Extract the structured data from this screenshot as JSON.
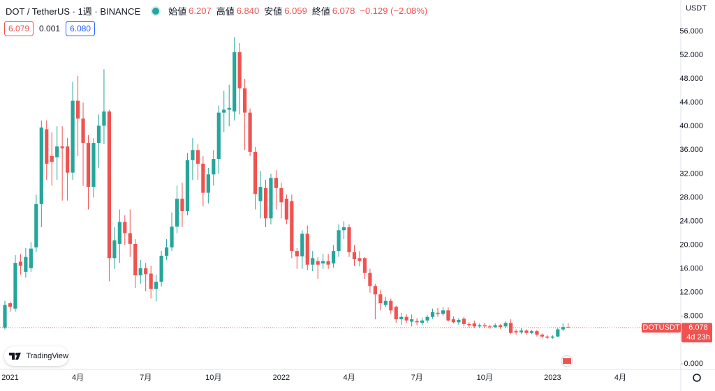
{
  "header": {
    "symbol": "DOT / TetherUS · 1週 · BINANCE",
    "open_label": "始値",
    "open": "6.207",
    "high_label": "高値",
    "high": "6.840",
    "low_label": "安値",
    "low": "6.059",
    "close_label": "終値",
    "close": "6.078",
    "change": "−0.129 (−2.08%)",
    "bid": "6.079",
    "spread": "0.001",
    "ask": "6.080"
  },
  "currency": "USDT",
  "price_tag": {
    "symbol": "DOTUSDT",
    "countdown": "4d 23h"
  },
  "logo": "TradingView",
  "chart_data": {
    "type": "candlestick",
    "categories": [
      null,
      "2021",
      null,
      null,
      null,
      null,
      null,
      null,
      null,
      null,
      null,
      null,
      null,
      null,
      "4月",
      null,
      null,
      null,
      null,
      null,
      null,
      null,
      null,
      null,
      null,
      null,
      null,
      "7月",
      null,
      null,
      null,
      null,
      null,
      null,
      null,
      null,
      null,
      null,
      null,
      null,
      "10月",
      null,
      null,
      null,
      null,
      null,
      null,
      null,
      null,
      null,
      null,
      null,
      null,
      "2022",
      null,
      null,
      null,
      null,
      null,
      null,
      null,
      null,
      null,
      null,
      null,
      null,
      "4月",
      null,
      null,
      null,
      null,
      null,
      null,
      null,
      null,
      null,
      null,
      null,
      null,
      "7月",
      null,
      null,
      null,
      null,
      null,
      null,
      null,
      null,
      null,
      null,
      null,
      null,
      "10月",
      null,
      null,
      null,
      null,
      null,
      null,
      null,
      null,
      null,
      null,
      null,
      null,
      "2023",
      null,
      null,
      null,
      null,
      null,
      null,
      null,
      null,
      null,
      null,
      null,
      null,
      "4月"
    ],
    "open": [
      6.1,
      10.2,
      9.3,
      17.2,
      15.5,
      16.1,
      19.6,
      26.9,
      39.5,
      35,
      34.8,
      36.6,
      36.6,
      32.2,
      44.3,
      41.3,
      37.2,
      29.8,
      37.2,
      40.1,
      42.5,
      17.8,
      20.2,
      23.9,
      22,
      20.2,
      14.9,
      16.1,
      15.2,
      12.6,
      13.8,
      18.2,
      19.6,
      23.1,
      27.8,
      25.7,
      34.3,
      36,
      33.7,
      28.8,
      31.9,
      34.5,
      42.3,
      42.8,
      42.5,
      52.5,
      46.4,
      42.3,
      35.7,
      27.4,
      29.6,
      24.5,
      31.3,
      29.6,
      27.8,
      27.4,
      19,
      18.1,
      21.9,
      16.7,
      17.3,
      16.9,
      17.3,
      16.9,
      19,
      22.5,
      23,
      18.8,
      17.8,
      17.8,
      15.3,
      13.1,
      11.7,
      9.9,
      10.6,
      9.6,
      7.5,
      7.9,
      7.1,
      7.2,
      6.9,
      7.3,
      7.9,
      8.6,
      8.4,
      9,
      7.5,
      7.0,
      7.6,
      6.7,
      6.8,
      6.3,
      6.5,
      6.3,
      6.2,
      6.5,
      6.3,
      6.9,
      5.5,
      5.3,
      5.6,
      5.2,
      5.5,
      4.9,
      4.6,
      4.4,
      4.6,
      5.8,
      6.207,
      null,
      null,
      null,
      null,
      null,
      null,
      null,
      null,
      null,
      null
    ],
    "high": [
      10.6,
      10.5,
      18.3,
      18.5,
      19.5,
      20.5,
      28.5,
      41,
      41,
      39,
      40,
      40,
      38,
      47.5,
      48.5,
      44,
      38.5,
      38,
      42,
      49.6,
      42.8,
      23,
      26,
      25,
      26,
      21,
      17.5,
      17,
      16.5,
      15,
      19,
      21,
      25.5,
      30,
      30.5,
      35.5,
      38,
      37,
      35,
      33,
      36,
      43.5,
      46,
      47,
      55,
      54,
      48,
      43,
      36.5,
      32.5,
      31,
      32,
      32.6,
      30.5,
      28.5,
      28.5,
      19.5,
      22.5,
      23.3,
      19,
      18,
      18.5,
      18.5,
      20,
      23.5,
      24,
      23.5,
      20,
      19,
      18,
      16,
      13.5,
      12.5,
      11.3,
      11,
      9.8,
      8.6,
      8.3,
      8.3,
      7.7,
      7.8,
      8.2,
      9.3,
      9.4,
      9.6,
      9.5,
      8,
      7.7,
      7.9,
      7,
      7.3,
      6.8,
      6.9,
      6.6,
      6.8,
      6.7,
      7.2,
      7.5,
      5.8,
      6,
      5.8,
      5.7,
      5.7,
      5.1,
      4.8,
      4.8,
      6.1,
      6.8,
      6.84,
      null,
      null,
      null,
      null,
      null,
      null,
      null,
      null,
      null,
      null
    ],
    "low": [
      5.8,
      8.8,
      8.8,
      15,
      14.5,
      15.5,
      18.8,
      23,
      31,
      30,
      31,
      27.5,
      27.5,
      31,
      35,
      30,
      26,
      28,
      33,
      37,
      13.9,
      16,
      17,
      20,
      18,
      12.8,
      13.5,
      12.2,
      11,
      10.5,
      13,
      17.5,
      19,
      22,
      23,
      25,
      31,
      31,
      26.5,
      27,
      30,
      32,
      39,
      40,
      41,
      42,
      36,
      35,
      26,
      24.5,
      23,
      23.5,
      26,
      24.5,
      23.5,
      17.8,
      16,
      16,
      15.8,
      15.6,
      14.3,
      16,
      16,
      16.2,
      18,
      21,
      18,
      16.5,
      16.4,
      14.3,
      12,
      7.5,
      9,
      9.6,
      8.4,
      6.9,
      6.6,
      6.9,
      6.3,
      6.5,
      6.5,
      6.9,
      7.6,
      7.9,
      8.1,
      7.1,
      6.8,
      6.6,
      6.3,
      6.1,
      6,
      6,
      6.1,
      5.9,
      6,
      5.9,
      6,
      5,
      4.9,
      5,
      4.9,
      5,
      4.6,
      4.3,
      4.2,
      4.2,
      4.5,
      5.5,
      6.059,
      null,
      null,
      null,
      null,
      null,
      null,
      null,
      null,
      null,
      null
    ],
    "close": [
      9.9,
      9.6,
      17.0,
      16.5,
      18.0,
      19.4,
      26.9,
      39.8,
      33.7,
      34.0,
      36.6,
      36.3,
      32.2,
      44.3,
      41.3,
      37.2,
      29.8,
      37.2,
      40.1,
      42.5,
      17.8,
      20.8,
      23.9,
      22,
      20.2,
      14.9,
      16.1,
      15.1,
      12.6,
      13.8,
      18.2,
      19.6,
      23.1,
      27.8,
      25.7,
      34.3,
      36,
      33.7,
      28.8,
      31.9,
      34.5,
      42.3,
      42.8,
      43.1,
      52.5,
      46.4,
      42.3,
      35.7,
      28.6,
      29.8,
      24.5,
      31.3,
      29.6,
      27.2,
      24.3,
      19,
      18.1,
      21.9,
      16.7,
      17.8,
      16.7,
      17.3,
      16.7,
      19,
      22.5,
      23,
      18.8,
      17.6,
      17.3,
      15.3,
      13.1,
      11.7,
      10.2,
      10.6,
      9,
      7.5,
      7.9,
      7.3,
      7.5,
      7.0,
      7.3,
      7.9,
      8.7,
      8.4,
      9,
      7.3,
      7.0,
      7.4,
      6.7,
      6.5,
      6.3,
      6.5,
      6.3,
      6.2,
      6.5,
      6.2,
      6.9,
      5.2,
      5.3,
      5.6,
      5.2,
      5.5,
      4.9,
      4.6,
      4.4,
      4.6,
      5.8,
      6.2,
      6.078,
      null,
      null,
      null,
      null,
      null,
      null,
      null,
      null,
      null,
      null
    ],
    "up_color": "#26a69a",
    "down_color": "#ef5350",
    "ylim": [
      -0.94,
      61.27
    ],
    "yticks": [
      {
        "value": 0,
        "label": "0.000"
      },
      {
        "value": 8,
        "label": "8.000"
      },
      {
        "value": 12,
        "label": "12.000"
      },
      {
        "value": 16,
        "label": "16.000"
      },
      {
        "value": 20,
        "label": "20.000"
      },
      {
        "value": 24,
        "label": "24.000"
      },
      {
        "value": 28,
        "label": "28.000"
      },
      {
        "value": 32,
        "label": "32.000"
      },
      {
        "value": 36,
        "label": "36.000"
      },
      {
        "value": 40,
        "label": "40.000"
      },
      {
        "value": 44,
        "label": "44.000"
      },
      {
        "value": 48,
        "label": "48.000"
      },
      {
        "value": 52,
        "label": "52.000"
      },
      {
        "value": 56,
        "label": "56.000"
      }
    ],
    "grid": false
  }
}
